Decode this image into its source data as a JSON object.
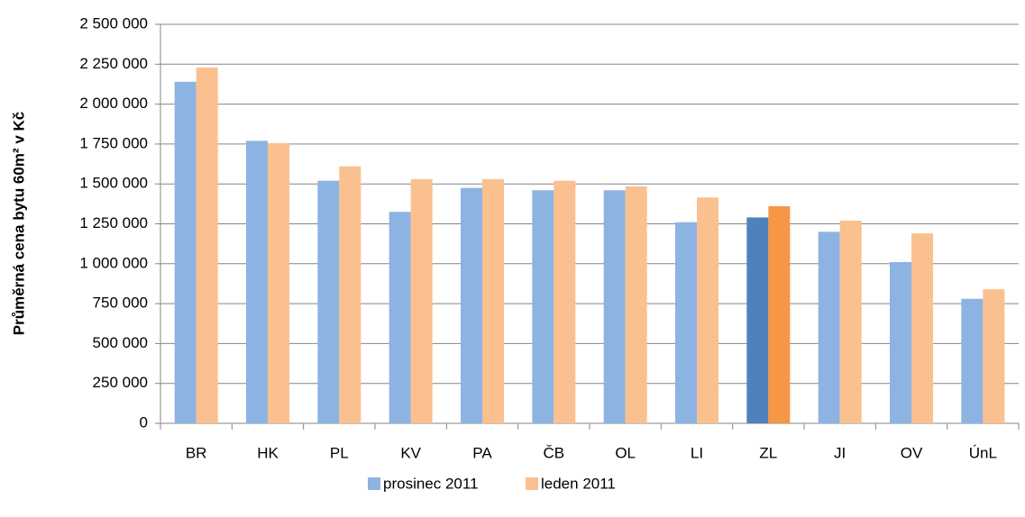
{
  "chart_data": {
    "type": "bar",
    "y_label": "Průměrná cena bytu 60m² v Kč",
    "categories": [
      "BR",
      "HK",
      "PL",
      "KV",
      "PA",
      "ČB",
      "OL",
      "LI",
      "ZL",
      "JI",
      "OV",
      "ÚnL"
    ],
    "series": [
      {
        "name": "prosinec 2011",
        "color": "#8db3e2",
        "colors": [
          "#8db3e2",
          "#8db3e2",
          "#8db3e2",
          "#8db3e2",
          "#8db3e2",
          "#8db3e2",
          "#8db3e2",
          "#8db3e2",
          "#4f81bd",
          "#8db3e2",
          "#8db3e2",
          "#8db3e2"
        ],
        "values": [
          2140000,
          1770000,
          1520000,
          1325000,
          1475000,
          1460000,
          1460000,
          1260000,
          1290000,
          1200000,
          1010000,
          780000
        ]
      },
      {
        "name": "leden 2011",
        "color": "#fac08f",
        "colors": [
          "#fac08f",
          "#fac08f",
          "#fac08f",
          "#fac08f",
          "#fac08f",
          "#fac08f",
          "#fac08f",
          "#fac08f",
          "#f79646",
          "#fac08f",
          "#fac08f",
          "#fac08f"
        ],
        "values": [
          2230000,
          1755000,
          1610000,
          1530000,
          1530000,
          1520000,
          1485000,
          1415000,
          1360000,
          1270000,
          1190000,
          840000
        ]
      }
    ],
    "ylim": [
      0,
      2500000
    ],
    "yticks": [
      0,
      {
        "value": 250000,
        "label": "250 000"
      },
      {
        "value": 500000,
        "label": "500 000"
      },
      {
        "value": 750000,
        "label": "750 000"
      },
      {
        "value": 1000000,
        "label": "1 000 000"
      },
      {
        "value": 1250000,
        "label": "1 250 000"
      },
      {
        "value": 1500000,
        "label": "1 500 000"
      },
      {
        "value": 1750000,
        "label": "1 750 000"
      },
      {
        "value": 2000000,
        "label": "2 000 000"
      },
      {
        "value": 2250000,
        "label": "2 250 000"
      },
      {
        "value": 2500000,
        "label": "2 500 000"
      }
    ],
    "grid": true,
    "legend": "bottom"
  }
}
